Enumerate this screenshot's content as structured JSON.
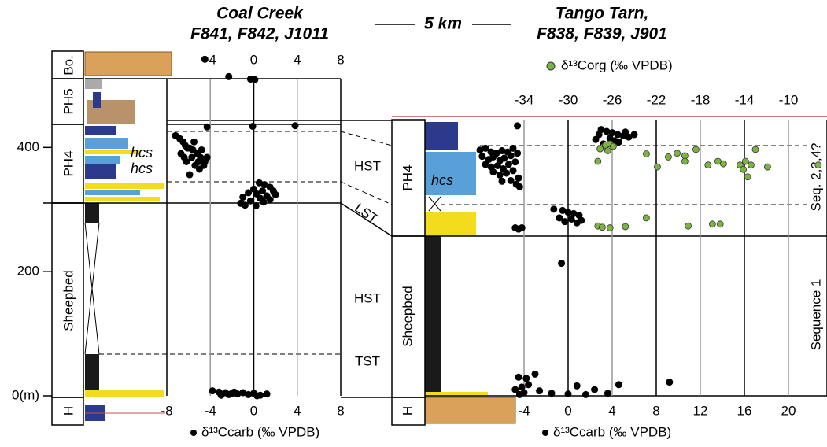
{
  "scale_bar": "5 km",
  "units": {
    "left": [
      "Bo.",
      "PH5",
      "PH4",
      "Sheepbed",
      "H"
    ],
    "right": [
      "PH4",
      "Sheepbed",
      "H"
    ]
  },
  "systems_tracts": [
    "HST",
    "LST",
    "HST",
    "TST"
  ],
  "sequences": [
    "Seq. 2,3,4?",
    "Sequence 1"
  ],
  "lithology_labels": [
    "hcs",
    "hcs",
    "hcs"
  ],
  "chart_data": [
    {
      "type": "scatter",
      "title": "Coal Creek",
      "subtitle": "F841, F842, J1011",
      "xlabel": "δ¹³Ccarb (‰ VPDB)",
      "xlim": [
        -8,
        8
      ],
      "xticks": [
        -8,
        -4,
        0,
        4,
        8
      ],
      "x_top_ticks": [
        -4,
        0,
        4,
        8
      ],
      "ylim": [
        0,
        555
      ],
      "yticks": [
        {
          "value": 0,
          "label": "0(m)"
        },
        200,
        400
      ],
      "grid": true,
      "series": [
        {
          "color": "#000000",
          "x": [
            -4.5,
            -2.3,
            -0.3,
            0.1,
            -4.3,
            -0.1,
            3.8,
            -7.2,
            -6.8,
            -6.5,
            -6.3,
            -5.9,
            -5.6,
            -5.2,
            -6.1,
            -5.7,
            -6.7,
            -4.9,
            -4.5,
            -5.4,
            -6.2,
            -5.0,
            -4.3,
            -5.1,
            -5.9,
            -4.6,
            -6.4,
            -5.5,
            -4.8,
            0.5,
            1.0,
            1.5,
            0.0,
            0.8,
            1.8,
            -0.5,
            0.3,
            1.2,
            2.0,
            -1.0,
            0.6,
            1.5,
            -0.3,
            0.9,
            -1.2,
            -0.8,
            0.2,
            -3.8,
            -3.2,
            -2.6,
            -2.0,
            -1.5,
            -1.0,
            -0.5,
            0.0,
            0.6,
            1.2,
            -2.3,
            -3.0,
            0.3,
            -1.8
          ],
          "values": [
            542,
            514,
            510,
            509,
            433,
            434,
            435,
            419,
            414,
            409,
            403,
            399,
            396,
            390,
            399,
            384,
            390,
            384,
            377,
            371,
            377,
            365,
            384,
            377,
            356,
            371,
            384,
            409,
            396,
            343,
            340,
            336,
            333,
            330,
            330,
            327,
            325,
            322,
            324,
            320,
            318,
            316,
            314,
            312,
            310,
            307,
            306,
            8,
            6,
            5,
            4,
            3,
            5,
            2,
            4,
            1,
            3,
            2,
            1,
            0,
            6
          ]
        }
      ]
    },
    {
      "type": "scatter",
      "title": "Tango Tarn,",
      "subtitle": "F838, F839, J901",
      "xlabel": "δ¹³Ccarb (‰ VPDB)",
      "xlim": [
        -13,
        23.5
      ],
      "xticks": [
        -4,
        0,
        4,
        8,
        12,
        16,
        20
      ],
      "x2lim": [
        -43,
        -6.5
      ],
      "x2ticks": [
        -34,
        -30,
        -26,
        -22,
        -18,
        -14,
        -10
      ],
      "ylim": [
        0,
        444
      ],
      "grid": true,
      "series": [
        {
          "color": "#000000",
          "x": [
            3.0,
            3.5,
            4.0,
            4.5,
            5.0,
            5.5,
            3.8,
            4.2,
            2.8,
            5.2,
            3.2,
            4.6,
            2.5,
            6.0,
            -4.6,
            -8.0,
            -7.5,
            -7.0,
            -6.5,
            -6.0,
            -5.5,
            -5.0,
            -7.8,
            -7.2,
            -6.8,
            -6.2,
            -5.8,
            -5.2,
            -4.6,
            -7.5,
            -7.0,
            -6.4,
            -5.9,
            -5.4,
            -4.8,
            -6.8,
            -6.2,
            -5.6,
            -5.0,
            -4.5,
            -5.2,
            -4.7,
            -6.0,
            -4.4,
            -0.6,
            -1.3,
            -0.5,
            0.0,
            0.5,
            1.0,
            -0.8,
            0.3,
            1.2,
            -0.3,
            0.8,
            -4.8,
            -4.2,
            -4.5,
            -4.5,
            -3.8,
            -3.0,
            -4.8,
            -4.2,
            -3.6,
            -4.0,
            -2.6,
            -1.5,
            0.0,
            0.8,
            1.6,
            2.4,
            3.6,
            4.6,
            9.2,
            -4.4
          ],
          "values": [
            428,
            425,
            423,
            420,
            418,
            416,
            414,
            410,
            420,
            424,
            405,
            408,
            412,
            420,
            434,
            395,
            398,
            392,
            390,
            394,
            392,
            398,
            385,
            380,
            384,
            378,
            382,
            386,
            390,
            372,
            368,
            370,
            365,
            372,
            376,
            360,
            355,
            358,
            362,
            350,
            346,
            340,
            345,
            336,
            213,
            300,
            298,
            295,
            293,
            290,
            286,
            284,
            282,
            280,
            278,
            270,
            270,
            268,
            30,
            28,
            35,
            10,
            14,
            18,
            5,
            8,
            4,
            3,
            16,
            2,
            10,
            4,
            18,
            22,
            2
          ]
        },
        {
          "name": "δ¹³Corg (‰ VPDB)",
          "color": "#7cb342",
          "axis": "x2",
          "x": [
            -26.8,
            -26.6,
            -26.2,
            -25.9,
            -27.1,
            -26.4,
            -22.9,
            -20.9,
            -20.1,
            -19.4,
            -18.4,
            -21.9,
            -19.4,
            -17.3,
            -16.4,
            -15.9,
            -14.4,
            -13.9,
            -13.4,
            -13.0,
            -13.7,
            -14.1,
            -11.9,
            -7.3,
            -27.3,
            -27.3,
            -26.2,
            -24.8,
            -22.9,
            -19.1,
            -16.9,
            -16.2,
            -26.9
          ],
          "values": [
            400,
            403,
            405,
            401,
            397,
            394,
            389,
            384,
            390,
            386,
            396,
            368,
            377,
            371,
            377,
            373,
            371,
            377,
            371,
            396,
            352,
            364,
            368,
            371,
            377,
            273,
            270,
            272,
            286,
            273,
            276,
            276,
            271
          ]
        }
      ]
    }
  ]
}
